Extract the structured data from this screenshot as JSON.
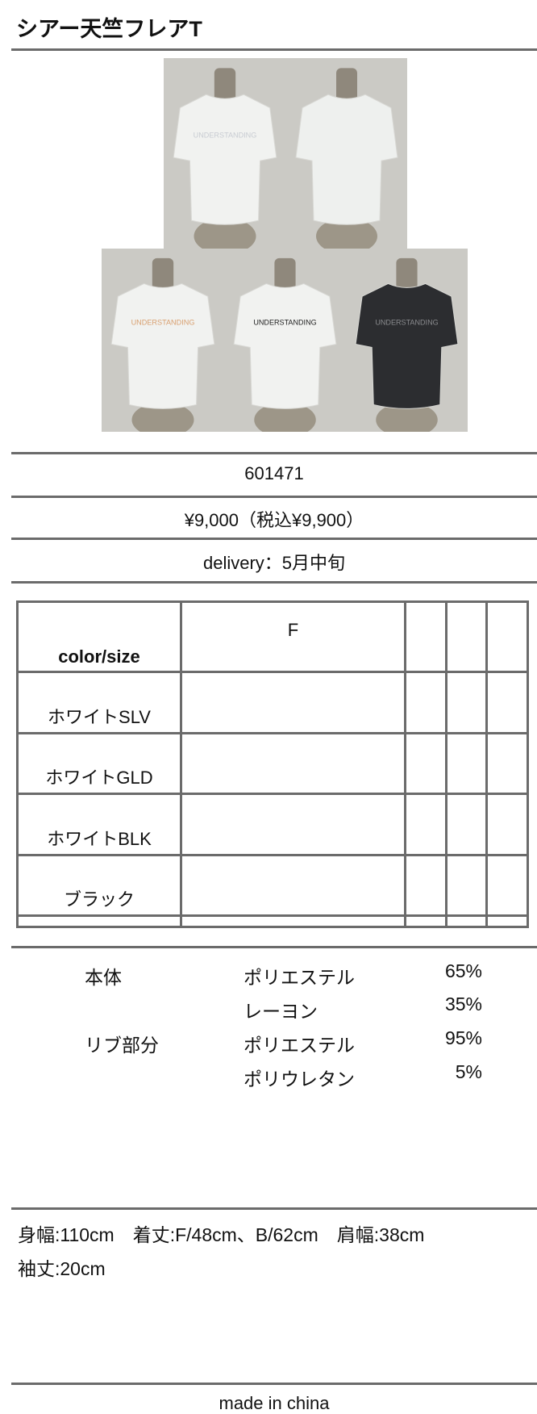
{
  "title": "シアー天竺フレアT",
  "photos": [
    {
      "label": "white-front",
      "shirt_color": "#f1f2f0",
      "print": "UNDERSTANDING",
      "print_color": "#c8ccd2"
    },
    {
      "label": "white-back",
      "shirt_color": "#eef0ee",
      "print": "",
      "print_color": ""
    },
    {
      "label": "white-gold",
      "shirt_color": "#f1f2f0",
      "print": "UNDERSTANDING",
      "print_color": "#d9a070"
    },
    {
      "label": "white-black",
      "shirt_color": "#f1f2f0",
      "print": "UNDERSTANDING",
      "print_color": "#222222"
    },
    {
      "label": "black",
      "shirt_color": "#2c2d30",
      "print": "UNDERSTANDING",
      "print_color": "#8a8b8e"
    }
  ],
  "product_number": "601471",
  "price": "¥9,000（税込¥9,900）",
  "delivery": "delivery：5月中旬",
  "size_table": {
    "header": "color/size",
    "sizes": [
      "F",
      "",
      "",
      ""
    ],
    "colors": [
      "ホワイトSLV",
      "ホワイトGLD",
      "ホワイトBLK",
      "ブラック",
      ""
    ]
  },
  "materials": [
    {
      "part": "本体",
      "fiber": "ポリエステル",
      "percent": "65%"
    },
    {
      "part": "",
      "fiber": "レーヨン",
      "percent": "35%"
    },
    {
      "part": "リブ部分",
      "fiber": "ポリエステル",
      "percent": "95%"
    },
    {
      "part": "",
      "fiber": "ポリウレタン",
      "percent": "5%"
    }
  ],
  "measurements": {
    "line1": "身幅:110cm　着丈:F/48cm、B/62cm　肩幅:38cm",
    "line2": "袖丈:20cm"
  },
  "origin": "made in china"
}
